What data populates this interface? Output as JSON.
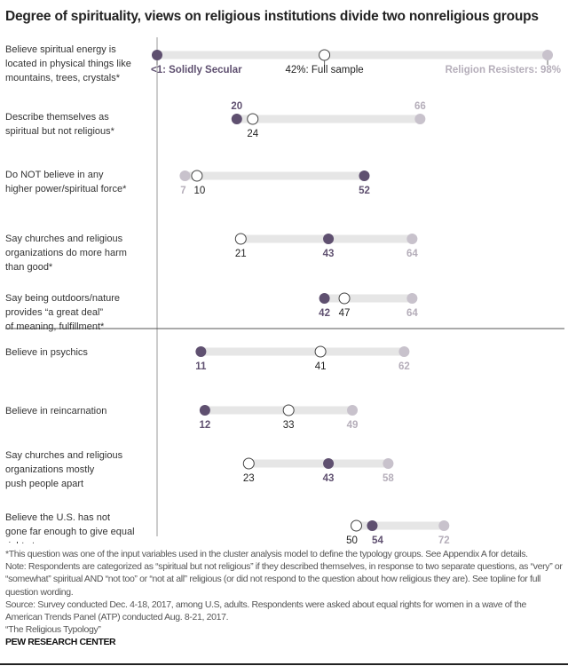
{
  "title": "Degree of spirituality, views on religious institutions divide two nonreligious groups",
  "chart_data": {
    "type": "dot",
    "colors": {
      "solidly_secular": "#5f5070",
      "full_sample": "#ffffff",
      "religion_resisters": "#c8c2cc",
      "track": "#e6e6e6"
    },
    "series": [
      {
        "name": "Solidly Secular",
        "label_first": "<1: Solidly Secular"
      },
      {
        "name": "Full sample",
        "label_first": "42%: Full sample"
      },
      {
        "name": "Religion Resisters",
        "label_first": "Religion Resisters: 98%"
      }
    ],
    "xlim": [
      0,
      100
    ],
    "rows": [
      {
        "question": [
          "Believe spiritual energy is",
          "located in physical things like",
          "mountains, trees, crystals*"
        ],
        "secular": 0,
        "full": 42,
        "resisters": 98,
        "labels": [
          "<1: Solidly Secular",
          "42%: Full sample",
          "Religion Resisters: 98%"
        ]
      },
      {
        "question": [
          "Describe themselves as",
          "spiritual but not religious*"
        ],
        "secular": 20,
        "full": 24,
        "resisters": 66,
        "labels": [
          "20",
          "24",
          "66"
        ]
      },
      {
        "question": [
          "Do NOT believe in any",
          "higher power/spiritual force*"
        ],
        "secular": 52,
        "full": 10,
        "resisters": 7,
        "labels": [
          "52",
          "10",
          "7"
        ]
      },
      {
        "question": [
          "Say churches and religious",
          "organizations do more harm",
          "than good*"
        ],
        "secular": 43,
        "full": 21,
        "resisters": 64,
        "labels": [
          "43",
          "21",
          "64"
        ]
      },
      {
        "question": [
          "Say being outdoors/nature",
          "provides “a great deal”",
          "of meaning, fulfillment*"
        ],
        "secular": 42,
        "full": 47,
        "resisters": 64,
        "labels": [
          "42",
          "47",
          "64"
        ]
      },
      {
        "question": [
          "Believe in psychics"
        ],
        "secular": 11,
        "full": 41,
        "resisters": 62,
        "labels": [
          "11",
          "41",
          "62"
        ]
      },
      {
        "question": [
          "Believe in reincarnation"
        ],
        "secular": 12,
        "full": 33,
        "resisters": 49,
        "labels": [
          "12",
          "33",
          "49"
        ]
      },
      {
        "question": [
          "Say churches and religious",
          "organizations mostly",
          "push people apart"
        ],
        "secular": 43,
        "full": 23,
        "resisters": 58,
        "labels": [
          "43",
          "23",
          "58"
        ]
      },
      {
        "question": [
          "Believe the U.S. has not",
          "gone far enough to give equal",
          "rights to women"
        ],
        "secular": 54,
        "full": 50,
        "resisters": 72,
        "labels": [
          "54",
          "50",
          "72"
        ]
      }
    ]
  },
  "notes": [
    "*This question was one of the input variables used in the cluster analysis model to define the typology groups. See Appendix A for details.",
    "Note: Respondents are categorized as “spiritual but not religious” if they described themselves, in response to two separate questions, as “very” or “somewhat” spiritual AND “not too” or “not at all” religious (or did not respond to the question about how religious they are). See topline for full question wording.",
    "Source: Survey conducted Dec. 4-18, 2017, among U.S, adults. Respondents were asked about equal rights for women in a wave of the American Trends Panel (ATP) conducted Aug. 8-21, 2017.",
    "“The Religious Typology”"
  ],
  "brand": "PEW RESEARCH CENTER"
}
